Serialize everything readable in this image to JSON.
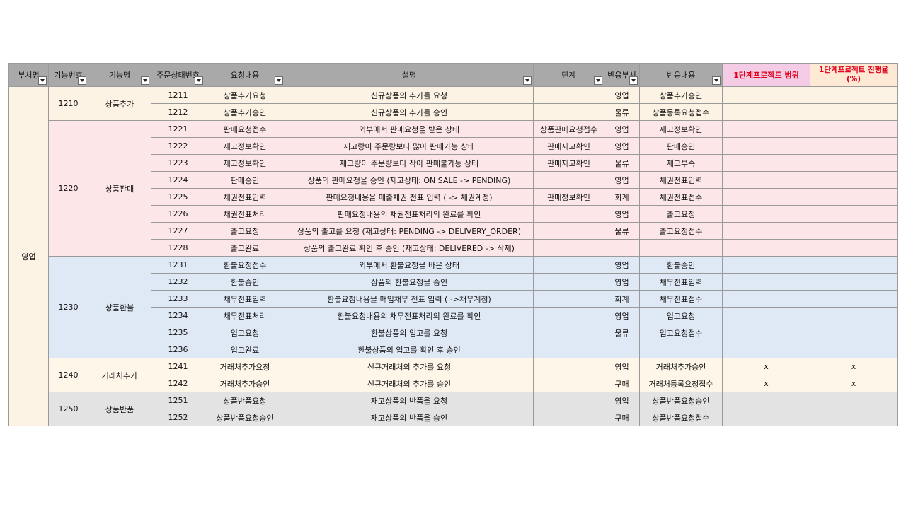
{
  "headers": [
    {
      "label": "부서명",
      "filter": true
    },
    {
      "label": "기능번호",
      "filter": true
    },
    {
      "label": "기능명",
      "filter": true
    },
    {
      "label": "주문상태번호",
      "filter": true
    },
    {
      "label": "요청내용",
      "filter": true
    },
    {
      "label": "설명",
      "filter": true
    },
    {
      "label": "단계",
      "filter": true
    },
    {
      "label": "반응부서",
      "filter": true
    },
    {
      "label": "반응내용",
      "filter": true
    },
    {
      "label": "1단계프로젝트 범위",
      "filter": false
    },
    {
      "label": "1단계프로젝트 진행율(%)",
      "filter": false
    }
  ],
  "department": "영업",
  "groups": [
    {
      "code": "1210",
      "name": "상품추가",
      "rows": [
        {
          "status": "1211",
          "request": "상품추가요청",
          "desc": "신규상품의 추가를 요청",
          "stage": "",
          "dept": "영업",
          "response": "상품추가승인",
          "scope": "",
          "progress": ""
        },
        {
          "status": "1212",
          "request": "상품추가승인",
          "desc": "신규상품의 추가를 승인",
          "stage": "",
          "dept": "물류",
          "response": "상품등록요청접수",
          "scope": "",
          "progress": ""
        }
      ]
    },
    {
      "code": "1220",
      "name": "상품판매",
      "rows": [
        {
          "status": "1221",
          "request": "판매요청접수",
          "desc": "외부에서 판매요청을 받은 상태",
          "stage": "상품판매요청접수",
          "dept": "영업",
          "response": "재고정보확인",
          "scope": "",
          "progress": ""
        },
        {
          "status": "1222",
          "request": "재고정보확인",
          "desc": "재고량이 주문량보다 많아 판매가능 상태",
          "stage": "판매재고확인",
          "dept": "영업",
          "response": "판매승인",
          "scope": "",
          "progress": ""
        },
        {
          "status": "1223",
          "request": "재고정보확인",
          "desc": "재고량이 주문량보다 작아 판매불가능 상태",
          "stage": "판매재고확인",
          "dept": "물류",
          "response": "재고부족",
          "scope": "",
          "progress": ""
        },
        {
          "status": "1224",
          "request": "판매승인",
          "desc": "상품의 판매요청을 승인 (재고상태: ON SALE -> PENDING)",
          "stage": "",
          "dept": "영업",
          "response": "채권전표입력",
          "scope": "",
          "progress": ""
        },
        {
          "status": "1225",
          "request": "채권전표입력",
          "desc": "판매요청내용을 매출채권 전표 입력 ( -> 채권계정)",
          "stage": "판매정보확인",
          "dept": "회계",
          "response": "채권전표접수",
          "scope": "",
          "progress": ""
        },
        {
          "status": "1226",
          "request": "채권전표처리",
          "desc": "판매요청내용의 채권전표처리의 완료를 확인",
          "stage": "",
          "dept": "영업",
          "response": "출고요청",
          "scope": "",
          "progress": ""
        },
        {
          "status": "1227",
          "request": "출고요청",
          "desc": "상품의 출고를 요청 (재고상태: PENDING -> DELIVERY_ORDER)",
          "stage": "",
          "dept": "물류",
          "response": "출고요청접수",
          "scope": "",
          "progress": ""
        },
        {
          "status": "1228",
          "request": "출고완료",
          "desc": "상품의 출고완료 확인 후 승인 (재고상태: DELIVERED -> 삭제)",
          "stage": "",
          "dept": "",
          "response": "",
          "scope": "",
          "progress": ""
        }
      ]
    },
    {
      "code": "1230",
      "name": "상품환불",
      "rows": [
        {
          "status": "1231",
          "request": "환불요청접수",
          "desc": "외부에서 환불요청을 바은 상태",
          "stage": "",
          "dept": "영업",
          "response": "환불승인",
          "scope": "",
          "progress": ""
        },
        {
          "status": "1232",
          "request": "환불승인",
          "desc": "상품의 환불요청을 승인",
          "stage": "",
          "dept": "영업",
          "response": "채무전표입력",
          "scope": "",
          "progress": ""
        },
        {
          "status": "1233",
          "request": "채무전표입력",
          "desc": "환불요청내용을 매입채무 전표 입력 ( ->채무계정)",
          "stage": "",
          "dept": "회계",
          "response": "채무전표접수",
          "scope": "",
          "progress": ""
        },
        {
          "status": "1234",
          "request": "채무전표처리",
          "desc": "환불요청내용의 채무전표처리의 완료를 확인",
          "stage": "",
          "dept": "영업",
          "response": "입고요청",
          "scope": "",
          "progress": ""
        },
        {
          "status": "1235",
          "request": "입고요청",
          "desc": "환불상품의 입고를 요청",
          "stage": "",
          "dept": "물류",
          "response": "입고요청접수",
          "scope": "",
          "progress": ""
        },
        {
          "status": "1236",
          "request": "입고완료",
          "desc": "환불상품의 입고를 확인 후 승인",
          "stage": "",
          "dept": "",
          "response": "",
          "scope": "",
          "progress": ""
        }
      ]
    },
    {
      "code": "1240",
      "name": "거래처추가",
      "rows": [
        {
          "status": "1241",
          "request": "거래처추가요청",
          "desc": "신규거래처의 추가를 요청",
          "stage": "",
          "dept": "영업",
          "response": "거래처추가승인",
          "scope": "x",
          "progress": "x"
        },
        {
          "status": "1242",
          "request": "거래처추가승인",
          "desc": "신규거래처의 추가를 승인",
          "stage": "",
          "dept": "구매",
          "response": "거래처등록요청접수",
          "scope": "x",
          "progress": "x"
        }
      ]
    },
    {
      "code": "1250",
      "name": "상품반품",
      "rows": [
        {
          "status": "1251",
          "request": "상품반품요청",
          "desc": "재고상품의 반품을 요청",
          "stage": "",
          "dept": "영업",
          "response": "상품반품요청승인",
          "scope": "",
          "progress": ""
        },
        {
          "status": "1252",
          "request": "상품반품요청승인",
          "desc": "재고상품의 반품을 승인",
          "stage": "",
          "dept": "구매",
          "response": "상품반품요청접수",
          "scope": "",
          "progress": ""
        }
      ]
    }
  ]
}
